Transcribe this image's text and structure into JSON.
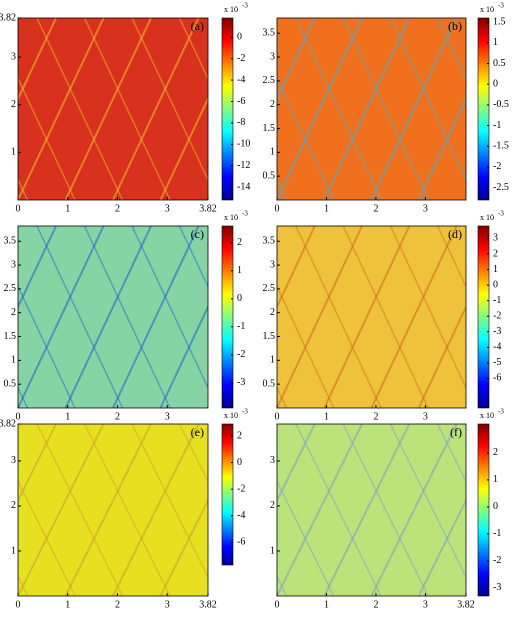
{
  "chart_data": [
    {
      "type": "heatmap",
      "label": "(a)",
      "colormap": "jet",
      "background": "#d8321e",
      "stripe": "#f2c02a",
      "xlim": [
        0,
        3.82
      ],
      "xticks": [
        0,
        1,
        2,
        3,
        3.82
      ],
      "ylim": [
        0,
        3.82
      ],
      "yticks": [
        1,
        2,
        3,
        3.82
      ],
      "clim": [
        -15.2,
        1.8
      ],
      "cticks": [
        0,
        -2,
        -4,
        -6,
        -8,
        -10,
        -12,
        -14
      ],
      "cbar_label": "x 10",
      "cbar_exponent": "-3"
    },
    {
      "type": "heatmap",
      "label": "(b)",
      "colormap": "jet",
      "background": "#f0701e",
      "stripe": "#3ab8e0",
      "xlim": [
        0,
        3.82
      ],
      "xticks": [
        0,
        1,
        2,
        3
      ],
      "ylim": [
        0,
        3.82
      ],
      "yticks": [
        0.5,
        1,
        1.5,
        2,
        2.5,
        3,
        3.5
      ],
      "clim": [
        -2.8,
        1.6
      ],
      "cticks": [
        1.5,
        1,
        0.5,
        0,
        -0.5,
        -1,
        -1.5,
        -2,
        -2.5
      ],
      "cbar_label": "x 10",
      "cbar_exponent": "-3"
    },
    {
      "type": "heatmap",
      "label": "(c)",
      "colormap": "jet",
      "background": "#86d4a4",
      "stripe": "#2060c8",
      "xlim": [
        0,
        3.82
      ],
      "xticks": [
        0,
        1,
        2,
        3
      ],
      "ylim": [
        0,
        3.82
      ],
      "yticks": [
        0.5,
        1,
        1.5,
        2,
        2.5,
        3,
        3.5
      ],
      "clim": [
        -3.9,
        2.6
      ],
      "cticks": [
        2,
        1,
        0,
        -1,
        -2,
        -3
      ],
      "cbar_label": "x 10",
      "cbar_exponent": "-3"
    },
    {
      "type": "heatmap",
      "label": "(d)",
      "colormap": "jet",
      "background": "#eec23a",
      "stripe": "#d06a20",
      "xlim": [
        0,
        3.82
      ],
      "xticks": [
        0,
        1,
        2,
        3
      ],
      "ylim": [
        0,
        3.82
      ],
      "yticks": [
        0.5,
        1,
        1.5,
        2,
        2.5,
        3,
        3.5
      ],
      "clim": [
        -7.9,
        3.8
      ],
      "cticks": [
        3,
        2,
        1,
        0,
        -1,
        -2,
        -3,
        -4,
        -5,
        -6
      ],
      "cbar_label": "x 10",
      "cbar_exponent": "-3"
    },
    {
      "type": "heatmap",
      "label": "(e)",
      "colormap": "jet",
      "background": "#e6e020",
      "stripe": "#c8a030",
      "xlim": [
        0,
        3.82
      ],
      "xticks": [
        0,
        1,
        2,
        3,
        3.82
      ],
      "ylim": [
        0,
        3.82
      ],
      "yticks": [
        1,
        2,
        3,
        3.82
      ],
      "clim": [
        -7.7,
        2.9
      ],
      "cticks": [
        2,
        0,
        -2,
        -4,
        -6
      ],
      "cbar_label": "x 10",
      "cbar_exponent": "-3"
    },
    {
      "type": "heatmap",
      "label": "(f)",
      "colormap": "jet",
      "background": "#bce27a",
      "stripe": "#7aa0c8",
      "xlim": [
        0,
        3.82
      ],
      "xticks": [
        0,
        1,
        2,
        3,
        3.82
      ],
      "ylim": [
        0,
        3.82
      ],
      "yticks": [
        1,
        2,
        3
      ],
      "clim": [
        -3.3,
        3.07
      ],
      "cticks": [
        2,
        1,
        0,
        -1,
        -2,
        -3
      ],
      "cbar_label": "x 10",
      "cbar_exponent": "-3"
    }
  ]
}
